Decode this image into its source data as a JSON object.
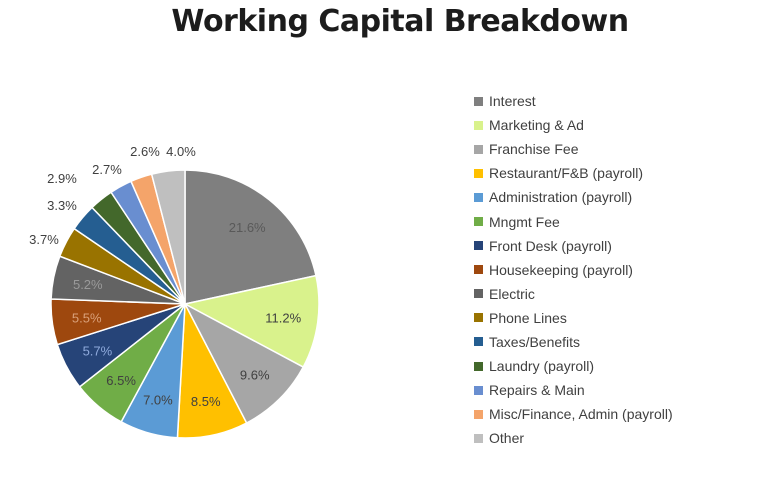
{
  "chart_data": {
    "type": "pie",
    "title": "Working Capital Breakdown",
    "legend_position": "right",
    "slices": [
      {
        "label": "Interest",
        "value": 21.6,
        "display": "21.6%",
        "color": "#7f7f7f",
        "label_color": "#595959"
      },
      {
        "label": "Marketing & Ad",
        "value": 11.2,
        "display": "11.2%",
        "color": "#d9f28c",
        "label_color": "#404040"
      },
      {
        "label": "Franchise Fee",
        "value": 9.6,
        "display": "9.6%",
        "color": "#a6a6a6",
        "label_color": "#404040"
      },
      {
        "label": "Restaurant/F&B (payroll)",
        "value": 8.5,
        "display": "8.5%",
        "color": "#ffc000",
        "label_color": "#404040"
      },
      {
        "label": "Administration (payroll)",
        "value": 7.0,
        "display": "7.0%",
        "color": "#5b9bd5",
        "label_color": "#404040"
      },
      {
        "label": "Mngmt Fee",
        "value": 6.5,
        "display": "6.5%",
        "color": "#70ad47",
        "label_color": "#404040"
      },
      {
        "label": "Front Desk (payroll)",
        "value": 5.7,
        "display": "5.7%",
        "color": "#264478",
        "label_color": "#8faadc"
      },
      {
        "label": "Housekeeping (payroll)",
        "value": 5.5,
        "display": "5.5%",
        "color": "#9e480e",
        "label_color": "#d9a07a"
      },
      {
        "label": "Electric",
        "value": 5.2,
        "display": "5.2%",
        "color": "#636363",
        "label_color": "#9a9a9a"
      },
      {
        "label": "Phone Lines",
        "value": 3.7,
        "display": "3.7%",
        "color": "#997300",
        "label_color": "#404040"
      },
      {
        "label": "Taxes/Benefits",
        "value": 3.3,
        "display": "3.3%",
        "color": "#255e91",
        "label_color": "#404040"
      },
      {
        "label": "Laundry (payroll)",
        "value": 2.9,
        "display": "2.9%",
        "color": "#43682b",
        "label_color": "#404040"
      },
      {
        "label": "Repairs & Main",
        "value": 2.7,
        "display": "2.7%",
        "color": "#698ed0",
        "label_color": "#404040"
      },
      {
        "label": "Misc/Finance, Admin (payroll)",
        "value": 2.6,
        "display": "2.6%",
        "color": "#f4a46a",
        "label_color": "#404040"
      },
      {
        "label": "Other",
        "value": 4.0,
        "display": "4.0%",
        "color": "#bfbfbf",
        "label_color": "#404040"
      }
    ]
  }
}
